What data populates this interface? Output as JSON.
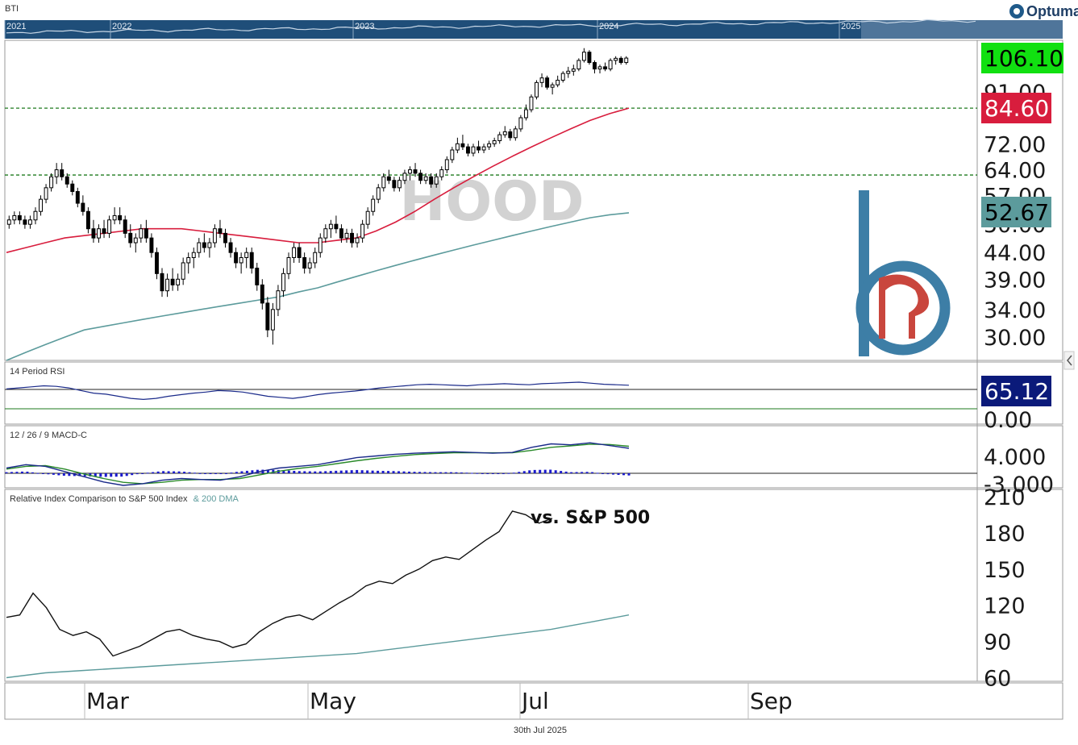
{
  "header": {
    "symbol_label": "BTI",
    "brand": "Optuma",
    "navigator_years": [
      "2021",
      "2022",
      "2023",
      "2024",
      "2025"
    ]
  },
  "watermark": "HOOD",
  "footer": {
    "date": "30th Jul 2025"
  },
  "colors": {
    "price_badge": "#11e011",
    "ma50_badge": "#d81d3d",
    "ma200_badge": "#5c9b9c",
    "rsi_badge": "#0b1a7a",
    "ma50_line": "#d81d3d",
    "ma200_line": "#5c9b9c",
    "navigator_bg": "#1f4e79",
    "level_line": "#1e7a1e",
    "logo_blue": "#3d7ea6",
    "logo_red": "#c9463d"
  },
  "chart_data": [
    {
      "type": "candlestick",
      "title": "HOOD",
      "scale": "log",
      "y_ticks": [
        "106.10",
        "91.00",
        "84.60",
        "72.00",
        "64.00",
        "57.00",
        "52.67",
        "50.00",
        "44.00",
        "39.00",
        "34.00",
        "30.00"
      ],
      "x_labels": [
        "Mar",
        "May",
        "Jul",
        "Sep"
      ],
      "ylim": [
        27,
        115
      ],
      "horizontal_levels": [
        84.6,
        62.5
      ],
      "last_values": {
        "price": "106.10",
        "ma50": "84.60",
        "ma200": "52.67"
      },
      "ohlc": [
        [
          50,
          52,
          49,
          51
        ],
        [
          51,
          53,
          50,
          52
        ],
        [
          52,
          53,
          50,
          51
        ],
        [
          51,
          52,
          49,
          50
        ],
        [
          50,
          52,
          49,
          51
        ],
        [
          51,
          54,
          50,
          53
        ],
        [
          53,
          57,
          52,
          56
        ],
        [
          56,
          60,
          55,
          59
        ],
        [
          59,
          63,
          58,
          62
        ],
        [
          62,
          66,
          60,
          64
        ],
        [
          64,
          66,
          61,
          62
        ],
        [
          62,
          63,
          59,
          60
        ],
        [
          60,
          61,
          57,
          58
        ],
        [
          58,
          59,
          54,
          55
        ],
        [
          55,
          57,
          52,
          53
        ],
        [
          53,
          54,
          48,
          49
        ],
        [
          49,
          51,
          46,
          47
        ],
        [
          47,
          50,
          46,
          49
        ],
        [
          49,
          51,
          47,
          48
        ],
        [
          48,
          52,
          47,
          51
        ],
        [
          51,
          54,
          50,
          52
        ],
        [
          52,
          54,
          50,
          51
        ],
        [
          51,
          52,
          47,
          48
        ],
        [
          48,
          50,
          45,
          46
        ],
        [
          46,
          48,
          44,
          47
        ],
        [
          47,
          50,
          46,
          49
        ],
        [
          49,
          51,
          46,
          47
        ],
        [
          47,
          48,
          43,
          44
        ],
        [
          44,
          45,
          39,
          40
        ],
        [
          40,
          41,
          36,
          37
        ],
        [
          37,
          40,
          36,
          39
        ],
        [
          39,
          41,
          37,
          38
        ],
        [
          38,
          40,
          37,
          39
        ],
        [
          39,
          43,
          38,
          42
        ],
        [
          42,
          44,
          40,
          43
        ],
        [
          43,
          45,
          41,
          44
        ],
        [
          44,
          47,
          43,
          46
        ],
        [
          46,
          48,
          44,
          45
        ],
        [
          45,
          47,
          43,
          46
        ],
        [
          46,
          50,
          45,
          49
        ],
        [
          49,
          51,
          47,
          48
        ],
        [
          48,
          49,
          45,
          46
        ],
        [
          46,
          47,
          43,
          44
        ],
        [
          44,
          45,
          41,
          42
        ],
        [
          42,
          44,
          40,
          43
        ],
        [
          43,
          45,
          41,
          44
        ],
        [
          44,
          45,
          40,
          41
        ],
        [
          41,
          42,
          37,
          38
        ],
        [
          38,
          39,
          34,
          35
        ],
        [
          35,
          36,
          30,
          31
        ],
        [
          31,
          35,
          29,
          34
        ],
        [
          34,
          38,
          33,
          37
        ],
        [
          37,
          41,
          36,
          40
        ],
        [
          40,
          44,
          39,
          43
        ],
        [
          43,
          46,
          42,
          45
        ],
        [
          45,
          46,
          42,
          43
        ],
        [
          43,
          44,
          40,
          41
        ],
        [
          41,
          43,
          40,
          42
        ],
        [
          42,
          45,
          41,
          44
        ],
        [
          44,
          48,
          43,
          47
        ],
        [
          47,
          50,
          46,
          49
        ],
        [
          49,
          51,
          47,
          50
        ],
        [
          50,
          52,
          48,
          49
        ],
        [
          49,
          50,
          46,
          47
        ],
        [
          47,
          49,
          46,
          48
        ],
        [
          48,
          49,
          45,
          46
        ],
        [
          46,
          48,
          45,
          47
        ],
        [
          47,
          51,
          46,
          50
        ],
        [
          50,
          54,
          49,
          53
        ],
        [
          53,
          57,
          52,
          56
        ],
        [
          56,
          60,
          55,
          59
        ],
        [
          59,
          63,
          58,
          62
        ],
        [
          62,
          64,
          60,
          61
        ],
        [
          61,
          62,
          58,
          59
        ],
        [
          59,
          62,
          58,
          61
        ],
        [
          61,
          64,
          60,
          63
        ],
        [
          63,
          65,
          61,
          64
        ],
        [
          64,
          66,
          62,
          63
        ],
        [
          63,
          64,
          60,
          61
        ],
        [
          61,
          63,
          60,
          62
        ],
        [
          62,
          63,
          59,
          60
        ],
        [
          60,
          63,
          59,
          62
        ],
        [
          62,
          65,
          61,
          64
        ],
        [
          64,
          68,
          63,
          67
        ],
        [
          67,
          71,
          66,
          70
        ],
        [
          70,
          74,
          69,
          72
        ],
        [
          72,
          75,
          70,
          71
        ],
        [
          71,
          72,
          68,
          69
        ],
        [
          69,
          72,
          68,
          71
        ],
        [
          71,
          73,
          69,
          70
        ],
        [
          70,
          72,
          69,
          71
        ],
        [
          71,
          73,
          70,
          72
        ],
        [
          72,
          74,
          71,
          73
        ],
        [
          73,
          76,
          72,
          75
        ],
        [
          75,
          78,
          74,
          76
        ],
        [
          76,
          77,
          73,
          74
        ],
        [
          74,
          78,
          73,
          77
        ],
        [
          77,
          82,
          76,
          81
        ],
        [
          81,
          86,
          80,
          84
        ],
        [
          84,
          90,
          83,
          89
        ],
        [
          89,
          96,
          88,
          95
        ],
        [
          95,
          99,
          93,
          97
        ],
        [
          97,
          98,
          92,
          93
        ],
        [
          93,
          95,
          90,
          94
        ],
        [
          94,
          98,
          93,
          96
        ],
        [
          96,
          100,
          95,
          99
        ],
        [
          99,
          102,
          97,
          100
        ],
        [
          100,
          103,
          98,
          101
        ],
        [
          101,
          106,
          100,
          105
        ],
        [
          105,
          111,
          104,
          109
        ],
        [
          109,
          110,
          103,
          104
        ],
        [
          104,
          105,
          99,
          101
        ],
        [
          101,
          103,
          99,
          102
        ],
        [
          102,
          104,
          100,
          101
        ],
        [
          101,
          106,
          100,
          105
        ],
        [
          105,
          107,
          103,
          106
        ],
        [
          106,
          107,
          103,
          104
        ],
        [
          104,
          107,
          103,
          106.1
        ]
      ],
      "ma50": [
        44,
        45,
        46,
        47,
        47.5,
        48,
        48.5,
        49,
        49,
        49,
        48.5,
        48,
        47.5,
        47,
        46.5,
        46,
        46,
        46.5,
        47,
        48.5,
        50.5,
        53,
        56,
        59,
        62,
        65,
        68,
        71,
        74,
        77,
        80,
        82.5,
        84.6
      ],
      "ma200": [
        27,
        28,
        29,
        30,
        31,
        31.5,
        32,
        32.5,
        33,
        33.5,
        34,
        34.5,
        35,
        35.5,
        36,
        36.8,
        37.5,
        38.5,
        39.5,
        40.5,
        41.5,
        42.5,
        43.5,
        44.5,
        45.5,
        46.5,
        47.5,
        48.5,
        49.5,
        50.5,
        51.5,
        52.2,
        52.67
      ]
    },
    {
      "type": "line",
      "title": "14 Period RSI",
      "y_ticks": [
        "65.12",
        "0.00"
      ],
      "last_value": "65.12",
      "reference_levels": [
        70,
        30
      ],
      "values": [
        58,
        60,
        62,
        64,
        63,
        60,
        55,
        50,
        48,
        44,
        40,
        38,
        40,
        44,
        47,
        50,
        52,
        55,
        54,
        52,
        48,
        44,
        42,
        40,
        43,
        47,
        50,
        52,
        54,
        57,
        60,
        62,
        64,
        66,
        67,
        66,
        65,
        64,
        66,
        67,
        68,
        67,
        66,
        68,
        69,
        70,
        71,
        69,
        67,
        66,
        65.12
      ]
    },
    {
      "type": "line",
      "title": "12 / 26 / 9 MACD-C",
      "y_ticks": [
        "4.000",
        "-3.000"
      ],
      "macd": [
        1.5,
        2.5,
        2.0,
        0.5,
        -1.0,
        -2.5,
        -3.5,
        -3.0,
        -2.0,
        -1.5,
        -1.8,
        -2.0,
        -1.0,
        0.5,
        1.5,
        2.0,
        2.5,
        3.5,
        4.5,
        5.0,
        5.5,
        5.8,
        6.0,
        6.2,
        6.0,
        5.8,
        6.0,
        7.5,
        8.5,
        8.2,
        8.8,
        8.0,
        7.2
      ],
      "signal": [
        1.2,
        2.0,
        2.2,
        1.2,
        -0.2,
        -1.5,
        -2.6,
        -3.0,
        -2.6,
        -2.0,
        -1.8,
        -1.8,
        -1.5,
        -0.5,
        0.6,
        1.4,
        2.0,
        2.8,
        3.6,
        4.3,
        4.9,
        5.4,
        5.7,
        5.9,
        5.9,
        5.9,
        5.9,
        6.6,
        7.5,
        7.9,
        8.4,
        8.3,
        7.8
      ]
    },
    {
      "type": "line",
      "title": "Relative Index Comparison to S&P 500 Index",
      "title_suffix": "& 200 DMA",
      "annotation": "vs. S&P 500",
      "y_ticks": [
        "210",
        "180",
        "150",
        "120",
        "90",
        "60"
      ],
      "ylim": [
        57,
        216
      ],
      "values": [
        110,
        112,
        130,
        118,
        100,
        95,
        98,
        92,
        78,
        82,
        86,
        92,
        98,
        100,
        95,
        92,
        90,
        85,
        88,
        98,
        105,
        110,
        112,
        108,
        115,
        122,
        128,
        136,
        140,
        138,
        145,
        150,
        157,
        160,
        158,
        166,
        174,
        181,
        198,
        195,
        188,
        192
      ],
      "dma200": [
        60,
        62,
        64,
        65,
        66,
        67,
        68,
        69,
        70,
        71,
        72,
        73,
        74,
        75,
        76,
        77,
        78,
        79,
        80,
        82,
        84,
        86,
        88,
        90,
        92,
        94,
        96,
        98,
        100,
        103,
        106,
        109,
        112
      ]
    }
  ]
}
